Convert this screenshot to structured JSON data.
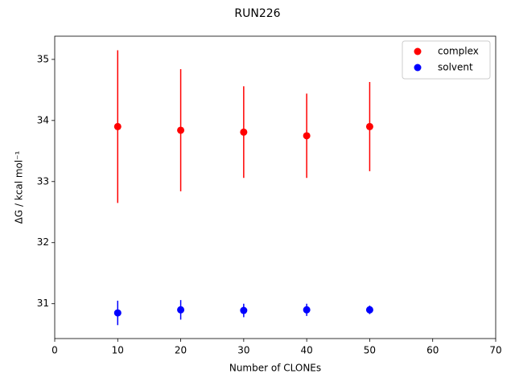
{
  "chart_data": {
    "type": "scatter",
    "title": "RUN226",
    "x_label": "Number of CLONEs",
    "y_label": "ΔG / kcal mol⁻¹",
    "xlim": [
      0,
      70
    ],
    "xticks": [
      0,
      10,
      20,
      30,
      40,
      50,
      60,
      70
    ],
    "ylim": [
      30.43,
      35.38
    ],
    "yticks": [
      31,
      32,
      33,
      34,
      35
    ],
    "legend": "upper right",
    "series": [
      {
        "name": "complex",
        "color": "#ff0000",
        "x": [
          10,
          20,
          30,
          40,
          50
        ],
        "values": [
          33.9,
          33.84,
          33.81,
          33.75,
          33.9
        ],
        "errors": [
          1.25,
          1.0,
          0.75,
          0.69,
          0.73
        ]
      },
      {
        "name": "solvent",
        "color": "#0000ff",
        "x": [
          10,
          20,
          30,
          40,
          50
        ],
        "values": [
          30.85,
          30.9,
          30.89,
          30.9,
          30.9
        ],
        "errors": [
          0.2,
          0.16,
          0.11,
          0.1,
          0.07
        ]
      }
    ]
  }
}
